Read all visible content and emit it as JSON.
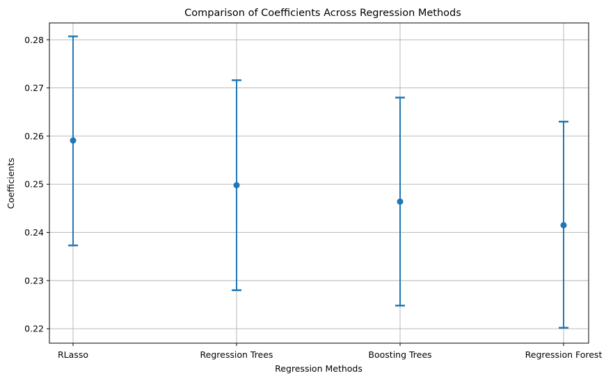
{
  "chart_data": {
    "type": "errorbar",
    "title": "Comparison of Coefficients Across Regression Methods",
    "xlabel": "Regression Methods",
    "ylabel": "Coefficients",
    "categories": [
      "RLasso",
      "Regression Trees",
      "Boosting Trees",
      "Regression Forest"
    ],
    "values": [
      0.2591,
      0.2498,
      0.2464,
      0.2415
    ],
    "lower": [
      0.2373,
      0.228,
      0.2248,
      0.2202
    ],
    "upper": [
      0.2807,
      0.2716,
      0.268,
      0.263
    ],
    "ylim": [
      0.217,
      0.2835
    ],
    "yticks": [
      "0.22",
      "0.23",
      "0.24",
      "0.25",
      "0.26",
      "0.27",
      "0.28"
    ],
    "grid": true,
    "colors": {
      "series": "#1f77b4",
      "grid": "#b0b0b0"
    }
  }
}
